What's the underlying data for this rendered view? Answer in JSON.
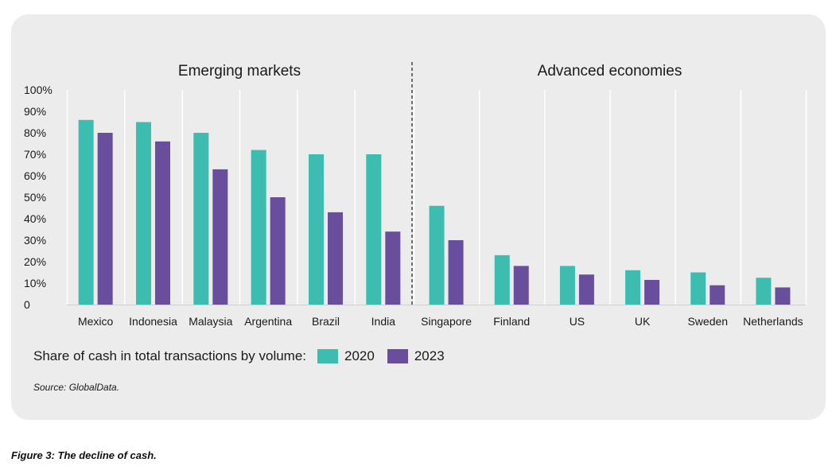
{
  "chart_data": {
    "type": "bar",
    "groups": [
      {
        "label": "Emerging markets",
        "categories": [
          "Mexico",
          "Indonesia",
          "Malaysia",
          "Argentina",
          "Brazil",
          "India"
        ]
      },
      {
        "label": "Advanced economies",
        "categories": [
          "Singapore",
          "Finland",
          "US",
          "UK",
          "Sweden",
          "Netherlands"
        ]
      }
    ],
    "categories": [
      "Mexico",
      "Indonesia",
      "Malaysia",
      "Argentina",
      "Brazil",
      "India",
      "Singapore",
      "Finland",
      "US",
      "UK",
      "Sweden",
      "Netherlands"
    ],
    "series": [
      {
        "name": "2020",
        "color": "#3dbcb0",
        "values": [
          86,
          85,
          80,
          72,
          70,
          70,
          46,
          23,
          18,
          16,
          15,
          12.5
        ]
      },
      {
        "name": "2023",
        "color": "#6a4e9e",
        "values": [
          80,
          76,
          63,
          50,
          43,
          34,
          30,
          18,
          14,
          11.5,
          9,
          8
        ]
      }
    ],
    "ylim": [
      0,
      100
    ],
    "yticks": [
      "0",
      "10%",
      "20%",
      "30%",
      "40%",
      "50%",
      "60%",
      "70%",
      "80%",
      "90%",
      "100%"
    ],
    "grid": "vertical",
    "legend_title": "Share of cash in total transactions by volume:",
    "legend_position": "bottom-left",
    "source": "Source: GlobalData.",
    "caption": "Figure 3: The decline of cash."
  }
}
